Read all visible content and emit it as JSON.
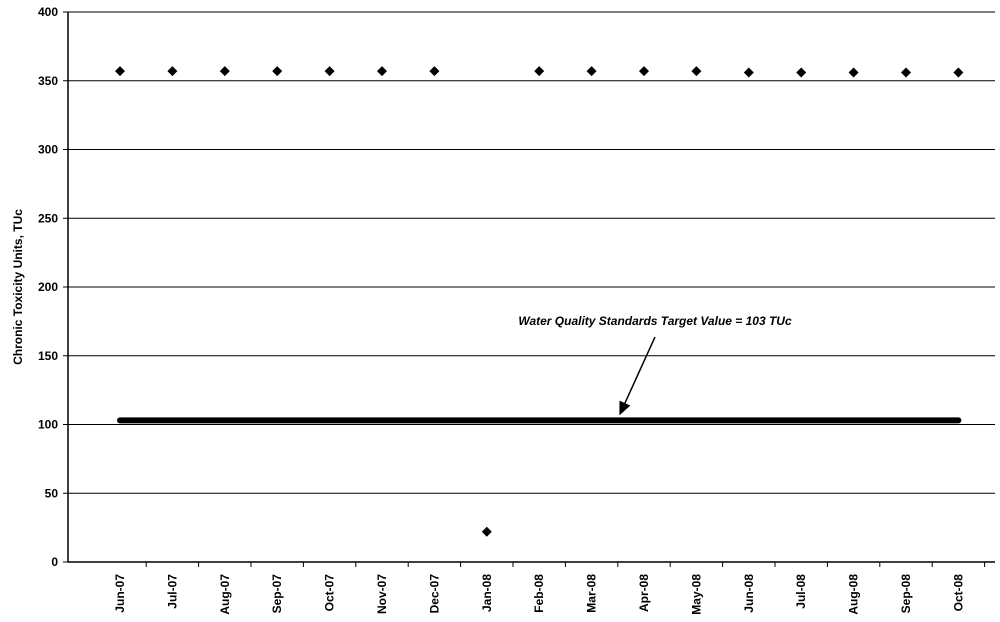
{
  "chart_data": {
    "type": "scatter",
    "ylabel": "Chronic Toxicity Units, TUc",
    "categories": [
      "Jun-07",
      "Jul-07",
      "Aug-07",
      "Sep-07",
      "Oct-07",
      "Nov-07",
      "Dec-07",
      "Jan-08",
      "Feb-08",
      "Mar-08",
      "Apr-08",
      "May-08",
      "Jun-08",
      "Jul-08",
      "Aug-08",
      "Sep-08",
      "Oct-08"
    ],
    "series": [
      {
        "mode": "markers",
        "color": "#000000",
        "values": [
          357,
          357,
          357,
          357,
          357,
          357,
          357,
          22,
          357,
          357,
          357,
          357,
          356,
          356,
          356,
          356,
          356
        ]
      },
      {
        "mode": "line",
        "color": "#000000",
        "values": [
          103,
          103,
          103,
          103,
          103,
          103,
          103,
          103,
          103,
          103,
          103,
          103,
          103,
          103,
          103,
          103,
          103
        ]
      }
    ],
    "annotation": "Water Quality Standards Target Value = 103 TUc",
    "ylim": [
      0,
      400
    ],
    "yticks": [
      0,
      50,
      100,
      150,
      200,
      250,
      300,
      350,
      400
    ],
    "grid": true
  }
}
